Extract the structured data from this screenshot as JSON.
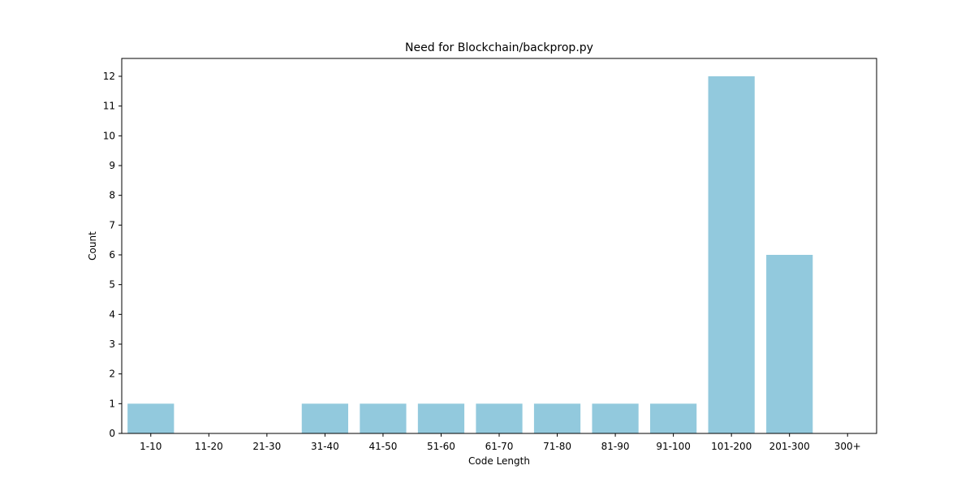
{
  "chart_data": {
    "type": "bar",
    "title": "Need for Blockchain/backprop.py",
    "xlabel": "Code Length",
    "ylabel": "Count",
    "categories": [
      "1-10",
      "11-20",
      "21-30",
      "31-40",
      "41-50",
      "51-60",
      "61-70",
      "71-80",
      "81-90",
      "91-100",
      "101-200",
      "201-300",
      "300+"
    ],
    "values": [
      1,
      0,
      0,
      1,
      1,
      1,
      1,
      1,
      1,
      1,
      12,
      6,
      0
    ],
    "yticks": [
      "0",
      "1",
      "2",
      "3",
      "4",
      "5",
      "6",
      "7",
      "8",
      "9",
      "10",
      "11",
      "12"
    ],
    "ylim": [
      0,
      12.6
    ],
    "grid": false,
    "bar_color": "#92c9dd"
  }
}
